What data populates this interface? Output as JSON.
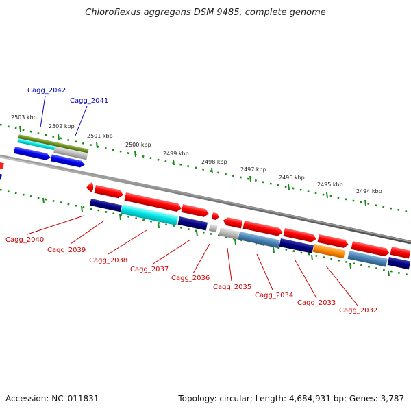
{
  "title": "Chloroflexus aggregans DSM 9485, complete genome",
  "accession": "Accession: NC_011831",
  "summary": "Topology: circular; Length: 4,684,931 bp; Genes: 3,787",
  "scale_labels": [
    "2503 kbp",
    "2502 kbp",
    "2501 kbp",
    "2500 kbp",
    "2499 kbp",
    "2498 kbp",
    "2497 kbp",
    "2496 kbp",
    "2495 kbp",
    "2494 kbp"
  ],
  "genes_top": [
    {
      "label": "Cagg_2042",
      "color": "#0000cc"
    },
    {
      "label": "Cagg_2041",
      "color": "#0000cc"
    }
  ],
  "genes_bottom": [
    {
      "label": "Cagg_2040",
      "color": "#cc0000"
    },
    {
      "label": "Cagg_2039",
      "color": "#cc0000"
    },
    {
      "label": "Cagg_2038",
      "color": "#cc0000"
    },
    {
      "label": "Cagg_2037",
      "color": "#cc0000"
    },
    {
      "label": "Cagg_2036",
      "color": "#cc0000"
    },
    {
      "label": "Cagg_2035",
      "color": "#cc0000"
    },
    {
      "label": "Cagg_2034",
      "color": "#cc0000"
    },
    {
      "label": "Cagg_2033",
      "color": "#cc0000"
    },
    {
      "label": "Cagg_2032",
      "color": "#cc0000"
    }
  ],
  "colors": {
    "forward_gene": "#ff0000",
    "reverse_gene": "#0000ee",
    "navy_feature": "#000080",
    "cyan_feature": "#00e5e5",
    "steel_feature": "#4682b4",
    "orange_feature": "#ff8c00",
    "olive_feature": "#6b8e23",
    "grey_feature": "#bbbbbb",
    "backbone": "#777777",
    "tick": "#1a8a1a"
  }
}
